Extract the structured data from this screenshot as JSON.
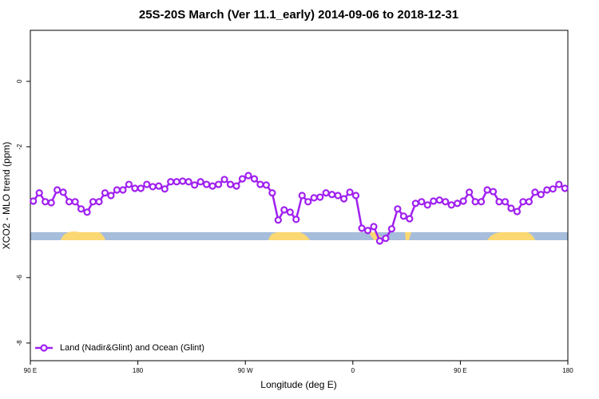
{
  "chart_data": {
    "type": "line",
    "title": "25S-20S March (Ver 11.1_early)   2014-09-06 to 2018-12-31",
    "x_label": "Longitude (deg E)",
    "y_label": "XCO2 - MLO trend (ppm)",
    "xlim": [
      90,
      540
    ],
    "ylim": [
      -8.54,
      1.56
    ],
    "xticks": [
      {
        "value": 90,
        "label": "90 E"
      },
      180,
      {
        "value": 270,
        "label": "90 W"
      },
      0,
      {
        "value": 450,
        "label": "90 E"
      },
      {
        "value": 540,
        "label": "180"
      }
    ],
    "yticks": [
      -8,
      -6,
      -2,
      0
    ],
    "legend_position": "bottom-left",
    "series": [
      {
        "name": "Land (Nadir&Glint) and Ocean (Glint)",
        "color": "#a020f0",
        "x": [
          92.5,
          97.5,
          102.5,
          107.5,
          112.5,
          117.5,
          122.5,
          127.5,
          132.5,
          137.5,
          142.5,
          147.5,
          152.5,
          157.5,
          162.5,
          167.5,
          172.5,
          177.5,
          182.5,
          187.5,
          192.5,
          197.5,
          202.5,
          207.5,
          212.5,
          217.5,
          222.5,
          227.5,
          232.5,
          237.5,
          242.5,
          247.5,
          252.5,
          257.5,
          262.5,
          267.5,
          272.5,
          277.5,
          282.5,
          287.5,
          292.5,
          297.5,
          302.5,
          307.5,
          312.5,
          317.5,
          322.5,
          327.5,
          332.5,
          337.5,
          342.5,
          347.5,
          352.5,
          357.5,
          362.5,
          367.5,
          372.5,
          377.5,
          382.5,
          387.5,
          392.5,
          397.5,
          402.5,
          407.5,
          412.5,
          417.5,
          422.5,
          427.5,
          432.5,
          437.5,
          442.5,
          447.5,
          452.5,
          457.5,
          462.5,
          467.5,
          472.5,
          477.5,
          482.5,
          487.5,
          492.5,
          497.5,
          502.5,
          507.5,
          512.5,
          517.5,
          522.5,
          527.5,
          532.5,
          537.5
        ],
        "values": [
          -3.66,
          -3.41,
          -3.68,
          -3.71,
          -3.32,
          -3.39,
          -3.68,
          -3.68,
          -3.9,
          -4.0,
          -3.68,
          -3.68,
          -3.41,
          -3.49,
          -3.32,
          -3.32,
          -3.15,
          -3.27,
          -3.27,
          -3.15,
          -3.22,
          -3.2,
          -3.29,
          -3.07,
          -3.07,
          -3.05,
          -3.07,
          -3.17,
          -3.07,
          -3.15,
          -3.2,
          -3.15,
          -3.0,
          -3.15,
          -3.2,
          -2.98,
          -2.88,
          -2.98,
          -3.15,
          -3.17,
          -3.41,
          -4.24,
          -3.93,
          -4.0,
          -4.22,
          -3.49,
          -3.68,
          -3.56,
          -3.54,
          -3.41,
          -3.46,
          -3.49,
          -3.59,
          -3.39,
          -3.49,
          -4.49,
          -4.56,
          -4.44,
          -4.88,
          -4.8,
          -4.51,
          -3.9,
          -4.12,
          -4.2,
          -3.73,
          -3.68,
          -3.78,
          -3.66,
          -3.63,
          -3.68,
          -3.78,
          -3.73,
          -3.66,
          -3.39,
          -3.68,
          -3.68,
          -3.32,
          -3.37,
          -3.68,
          -3.68,
          -3.88,
          -3.98,
          -3.68,
          -3.68,
          -3.39,
          -3.46,
          -3.32,
          -3.29,
          -3.15,
          -3.27
        ]
      }
    ]
  }
}
